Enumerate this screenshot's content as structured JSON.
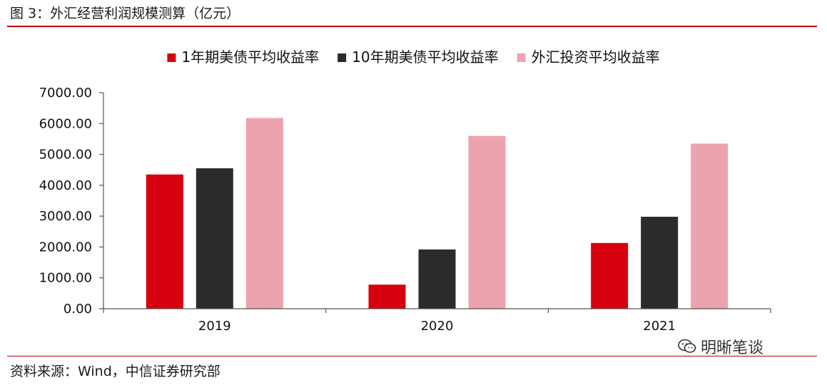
{
  "figure": {
    "title": "图 3：外汇经营利润规模测算（亿元）",
    "source": "资料来源：Wind，中信证券研究部",
    "watermark": "明晰笔谈",
    "watermark_icon": "wechat-icon"
  },
  "chart_data": {
    "type": "bar",
    "categories": [
      "2019",
      "2020",
      "2021"
    ],
    "series": [
      {
        "name": "1年期美债平均收益率",
        "color": "#d7000f",
        "values": [
          4350,
          780,
          2130
        ]
      },
      {
        "name": "10年期美债平均收益率",
        "color": "#2b2b2b",
        "values": [
          4550,
          1920,
          2980
        ]
      },
      {
        "name": "外汇投资平均收益率",
        "color": "#eca3ad",
        "values": [
          6180,
          5600,
          5350
        ]
      }
    ],
    "yticks": [
      "0.00",
      "1000.00",
      "2000.00",
      "3000.00",
      "4000.00",
      "5000.00",
      "6000.00",
      "7000.00"
    ],
    "ylim": [
      0,
      7000
    ],
    "legend_position": "top",
    "grid": false,
    "title": "",
    "xlabel": "",
    "ylabel": ""
  }
}
